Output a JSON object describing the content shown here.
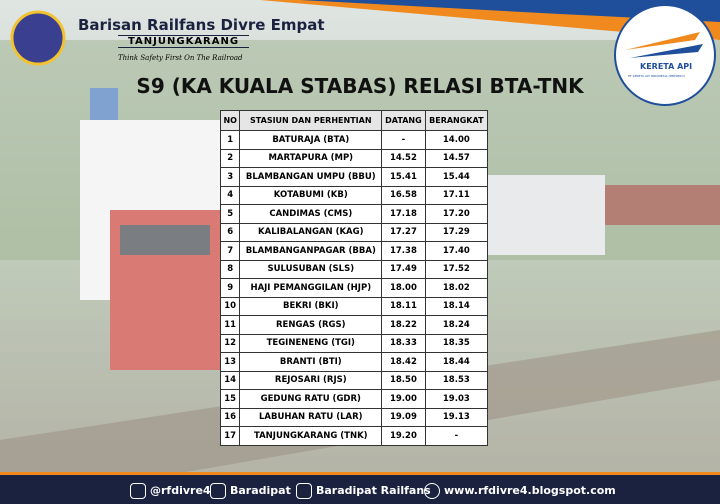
{
  "header": {
    "org_name": "Barisan Railfans Divre Empat",
    "org_region": "TANJUNGKARANG",
    "tagline": "Think Safety First On The Railroad",
    "logo_text": "KERETA API",
    "logo_subtext": "PT KERETA API INDONESIA (PERSERO)"
  },
  "title": "S9 (KA KUALA STABAS) RELASI BTA-TNK",
  "table": {
    "columns": [
      "NO",
      "STASIUN DAN PERHENTIAN",
      "DATANG",
      "BERANGKAT"
    ],
    "rows": [
      [
        "1",
        "BATURAJA (BTA)",
        "-",
        "14.00"
      ],
      [
        "2",
        "MARTAPURA (MP)",
        "14.52",
        "14.57"
      ],
      [
        "3",
        "BLAMBANGAN UMPU (BBU)",
        "15.41",
        "15.44"
      ],
      [
        "4",
        "KOTABUMI (KB)",
        "16.58",
        "17.11"
      ],
      [
        "5",
        "CANDIMAS (CMS)",
        "17.18",
        "17.20"
      ],
      [
        "6",
        "KALIBALANGAN (KAG)",
        "17.27",
        "17.29"
      ],
      [
        "7",
        "BLAMBANGANPAGAR (BBA)",
        "17.38",
        "17.40"
      ],
      [
        "8",
        "SULUSUBAN (SLS)",
        "17.49",
        "17.52"
      ],
      [
        "9",
        "HAJI PEMANGGILAN (HJP)",
        "18.00",
        "18.02"
      ],
      [
        "10",
        "BEKRI (BKI)",
        "18.11",
        "18.14"
      ],
      [
        "11",
        "RENGAS (RGS)",
        "18.22",
        "18.24"
      ],
      [
        "12",
        "TEGINENENG (TGI)",
        "18.33",
        "18.35"
      ],
      [
        "13",
        "BRANTI (BTI)",
        "18.42",
        "18.44"
      ],
      [
        "14",
        "REJOSARI (RJS)",
        "18.50",
        "18.53"
      ],
      [
        "15",
        "GEDUNG RATU (GDR)",
        "19.00",
        "19.03"
      ],
      [
        "16",
        "LABUHAN RATU (LAR)",
        "19.09",
        "19.13"
      ],
      [
        "17",
        "TANJUNGKARANG (TNK)",
        "19.20",
        "-"
      ]
    ]
  },
  "footer": {
    "instagram": "@rfdivre4",
    "facebook": "Baradipat",
    "youtube": "Baradipat Railfans",
    "website": "www.rfdivre4.blogspot.com"
  }
}
